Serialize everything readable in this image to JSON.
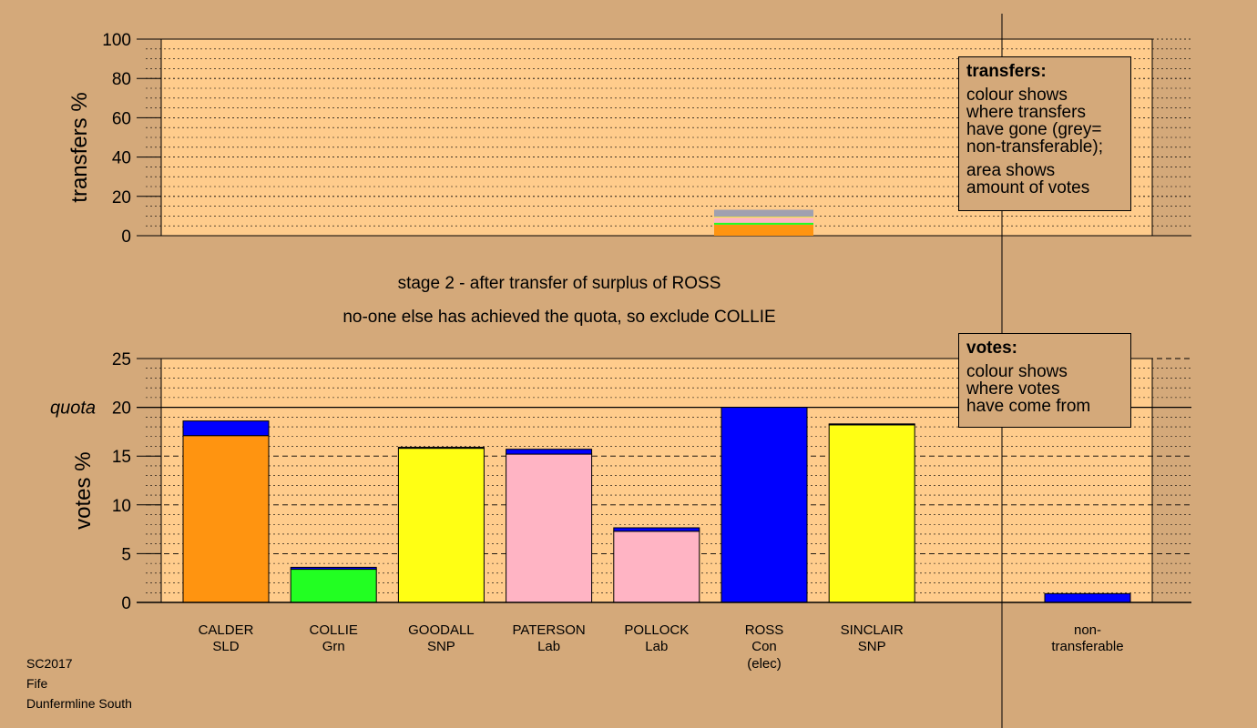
{
  "stage_title": "stage 2 - after transfer of surplus of ROSS",
  "stage_note": "no-one else has achieved the quota, so exclude COLLIE",
  "footer": {
    "line1": "SC2017",
    "line2": "Fife",
    "line3": "Dunfermline South"
  },
  "transfers_legend": {
    "title": "transfers:",
    "lines1": [
      "colour shows",
      "where transfers",
      "have gone (grey=",
      "non-transferable);"
    ],
    "lines2": [
      "area shows",
      "amount of votes"
    ]
  },
  "votes_legend": {
    "title": "votes:",
    "lines": [
      "colour shows",
      "where votes",
      "have come from"
    ]
  },
  "colors": {
    "background": "#d4a97a",
    "plot_bg": "#ffcc8c",
    "SLD": "#ff9410",
    "Grn": "#22ff22",
    "SNP": "#ffff14",
    "Lab": "#ffb4c4",
    "Con": "#0000ff",
    "grey": "#a0a0b0"
  },
  "chart_data": [
    {
      "type": "bar",
      "id": "transfers",
      "ylabel": "transfers %",
      "ylim": [
        0,
        100
      ],
      "yticks": [
        0,
        20,
        40,
        60,
        80,
        100
      ],
      "bars": [
        {
          "category_index": 5,
          "segments": [
            {
              "color": "SLD",
              "value": 5.6
            },
            {
              "color": "Grn",
              "value": 1.0
            },
            {
              "color": "Lab",
              "value": 2.6
            },
            {
              "color": "SNP",
              "value": 0.4
            },
            {
              "color": "grey",
              "value": 3.6
            }
          ]
        }
      ]
    },
    {
      "type": "bar",
      "id": "votes",
      "ylabel": "votes %",
      "ylim": [
        0,
        25
      ],
      "yticks": [
        0,
        5,
        10,
        15,
        20,
        25
      ],
      "quota": 20,
      "quota_label": "quota",
      "categories": [
        {
          "name": "CALDER",
          "party": "SLD",
          "extra": ""
        },
        {
          "name": "COLLIE",
          "party": "Grn",
          "extra": ""
        },
        {
          "name": "GOODALL",
          "party": "SNP",
          "extra": ""
        },
        {
          "name": "PATERSON",
          "party": "Lab",
          "extra": ""
        },
        {
          "name": "POLLOCK",
          "party": "Lab",
          "extra": ""
        },
        {
          "name": "ROSS",
          "party": "Con",
          "extra": "(elec)"
        },
        {
          "name": "SINCLAIR",
          "party": "SNP",
          "extra": ""
        }
      ],
      "nontransferable_label": [
        "non-",
        "transferable"
      ],
      "bars": [
        {
          "segments": [
            {
              "color": "SLD",
              "value": 17.1
            },
            {
              "color": "Con",
              "value": 1.5
            }
          ]
        },
        {
          "segments": [
            {
              "color": "Grn",
              "value": 3.4
            },
            {
              "color": "Con",
              "value": 0.2
            }
          ]
        },
        {
          "segments": [
            {
              "color": "SNP",
              "value": 15.8
            },
            {
              "color": "Con",
              "value": 0.1
            }
          ]
        },
        {
          "segments": [
            {
              "color": "Lab",
              "value": 15.2
            },
            {
              "color": "Con",
              "value": 0.5
            }
          ]
        },
        {
          "segments": [
            {
              "color": "Lab",
              "value": 7.3
            },
            {
              "color": "Con",
              "value": 0.35
            }
          ]
        },
        {
          "segments": [
            {
              "color": "Con",
              "value": 20.0
            }
          ]
        },
        {
          "segments": [
            {
              "color": "SNP",
              "value": 18.2
            },
            {
              "color": "Con",
              "value": 0.1
            }
          ]
        }
      ],
      "nontransferable": {
        "segments": [
          {
            "color": "Con",
            "value": 0.9
          }
        ]
      }
    }
  ]
}
